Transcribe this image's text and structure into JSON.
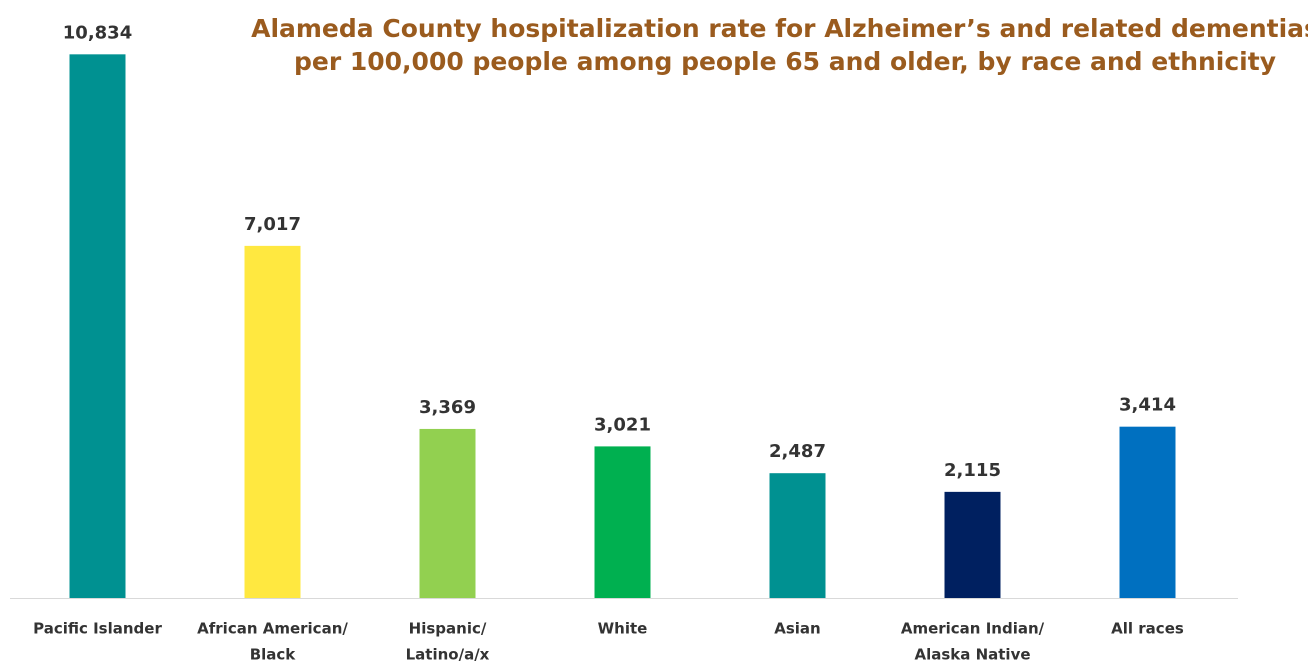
{
  "chart_data": {
    "type": "bar",
    "title": [
      "Alameda County hospitalization rate for Alzheimer’s and related dementias",
      "per 100,000 people among people 65 and older, by race and ethnicity"
    ],
    "categories": [
      [
        "Pacific Islander"
      ],
      [
        "African American/",
        "Black"
      ],
      [
        "Hispanic/",
        "Latino/a/x"
      ],
      [
        "White"
      ],
      [
        "Asian"
      ],
      [
        "American Indian/",
        "Alaska Native"
      ],
      [
        "All races"
      ]
    ],
    "values": [
      10834,
      7017,
      3369,
      3021,
      2487,
      2115,
      3414
    ],
    "value_labels": [
      "10,834",
      "7,017",
      "3,369",
      "3,021",
      "2,487",
      "2,115",
      "3,414"
    ],
    "colors": [
      "#009191",
      "#FFE840",
      "#92D050",
      "#00B050",
      "#009191",
      "#002060",
      "#0070C0"
    ],
    "ylim": [
      0,
      11000
    ]
  }
}
